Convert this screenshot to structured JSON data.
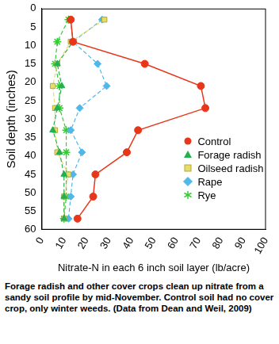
{
  "chart_data": {
    "type": "line",
    "orientation": "horizontal",
    "x_label": "Nitrate-N in each 6 inch soil layer (lb/acre)",
    "y_label": "Soil depth (inches)",
    "caption": "Forage radish and other cover crops clean up nitrate from a sandy soil profile by mid-November. Control soil had no cover crop, only winter weeds. (Data from Dean and Weil, 2009)",
    "y": [
      3,
      9,
      15,
      21,
      27,
      33,
      39,
      45,
      51,
      57
    ],
    "xlim": [
      0,
      100
    ],
    "xticks": [
      0,
      10,
      20,
      30,
      40,
      50,
      60,
      70,
      80,
      90,
      100
    ],
    "ylim": [
      60,
      0
    ],
    "yticks": [
      0,
      5,
      10,
      15,
      20,
      25,
      30,
      35,
      40,
      45,
      50,
      55,
      60
    ],
    "grid": false,
    "legend": "right",
    "series": [
      {
        "name": "Control",
        "color": "#e8361a",
        "marker": "circle",
        "line_style": "solid",
        "values": [
          13,
          14,
          46,
          71,
          73,
          43,
          38,
          24,
          23,
          16
        ]
      },
      {
        "name": "Forage radish",
        "color": "#22b14c",
        "marker": "triangle",
        "line_style": "dashed",
        "values": [
          13,
          14,
          7,
          9,
          7,
          5,
          8,
          10,
          10,
          10
        ]
      },
      {
        "name": "Oilseed radish",
        "color": "#e6dc6e",
        "marker": "square",
        "line_style": "dashed",
        "values": [
          28,
          13,
          7,
          5,
          6,
          6,
          7,
          12,
          10,
          10
        ]
      },
      {
        "name": "Rape",
        "color": "#4fb8e8",
        "marker": "diamond",
        "line_style": "dashed",
        "values": [
          27,
          14,
          25,
          29,
          17,
          13,
          18,
          14,
          13,
          12
        ]
      },
      {
        "name": "Rye",
        "color": "#33cc33",
        "marker": "star",
        "line_style": "dashed",
        "values": [
          12,
          7,
          6,
          8,
          8,
          11,
          11,
          11,
          11,
          10
        ]
      }
    ]
  }
}
